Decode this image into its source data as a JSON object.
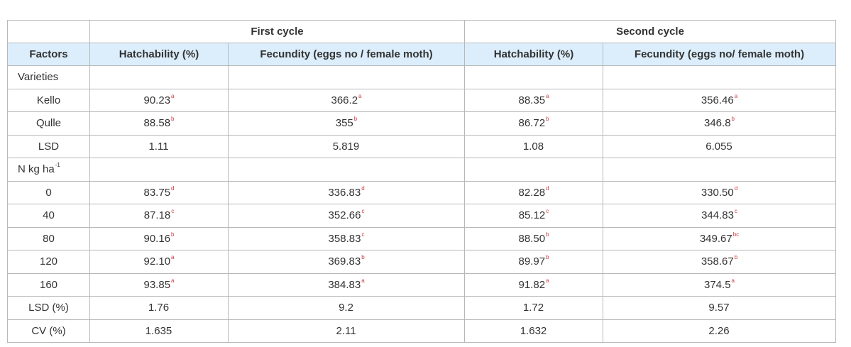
{
  "cycle_headers": [
    "First cycle",
    "Second cycle"
  ],
  "columns": [
    "Factors",
    "Hatchability (%)",
    "Fecundity (eggs no / female moth)",
    "Hatchability (%)",
    "Fecundity (eggs no/ female moth)"
  ],
  "sections": {
    "varieties": "Varieties",
    "nitrogen": {
      "label": "N kg ha",
      "sup": "-1"
    }
  },
  "rows": [
    {
      "factor": "Kello",
      "h1": "90.23",
      "h1s": "a",
      "f1": "366.2",
      "f1s": "a",
      "h2": "88.35",
      "h2s": "a",
      "f2": "356.46",
      "f2s": "a"
    },
    {
      "factor": "Qulle",
      "h1": "88.58",
      "h1s": "b",
      "f1": "355",
      "f1s": "b",
      "h2": "86.72",
      "h2s": "b",
      "f2": "346.8",
      "f2s": "b"
    },
    {
      "factor": "LSD",
      "h1": "1.11",
      "h1s": "",
      "f1": "5.819",
      "f1s": "",
      "h2": "1.08",
      "h2s": "",
      "f2": "6.055",
      "f2s": ""
    },
    {
      "factor": "0",
      "h1": "83.75",
      "h1s": "d",
      "f1": "336.83",
      "f1s": "d",
      "h2": "82.28",
      "h2s": "d",
      "f2": "330.50",
      "f2s": "d"
    },
    {
      "factor": "40",
      "h1": "87.18",
      "h1s": "c",
      "f1": "352.66",
      "f1s": "c",
      "h2": "85.12",
      "h2s": "c",
      "f2": "344.83",
      "f2s": "c"
    },
    {
      "factor": "80",
      "h1": "90.16",
      "h1s": "b",
      "f1": "358.83",
      "f1s": "c",
      "h2": "88.50",
      "h2s": "b",
      "f2": "349.67",
      "f2s": "bc"
    },
    {
      "factor": "120",
      "h1": "92.10",
      "h1s": "a",
      "f1": "369.83",
      "f1s": "b",
      "h2": "89.97",
      "h2s": "b",
      "f2": "358.67",
      "f2s": "b"
    },
    {
      "factor": "160",
      "h1": "93.85",
      "h1s": "a",
      "f1": "384.83",
      "f1s": "a",
      "h2": "91.82",
      "h2s": "a",
      "f2": "374.5",
      "f2s": "a"
    },
    {
      "factor": "LSD (%)",
      "h1": "1.76",
      "h1s": "",
      "f1": "9.2",
      "f1s": "",
      "h2": "1.72",
      "h2s": "",
      "f2": "9.57",
      "f2s": ""
    },
    {
      "factor": "CV (%)",
      "h1": "1.635",
      "h1s": "",
      "f1": "2.11",
      "f1s": "",
      "h2": "1.632",
      "h2s": "",
      "f2": "2.26",
      "f2s": ""
    }
  ],
  "colors": {
    "header_bg": "#dceefb",
    "superscript": "#d13b3b",
    "border": "#b8b8b8"
  }
}
